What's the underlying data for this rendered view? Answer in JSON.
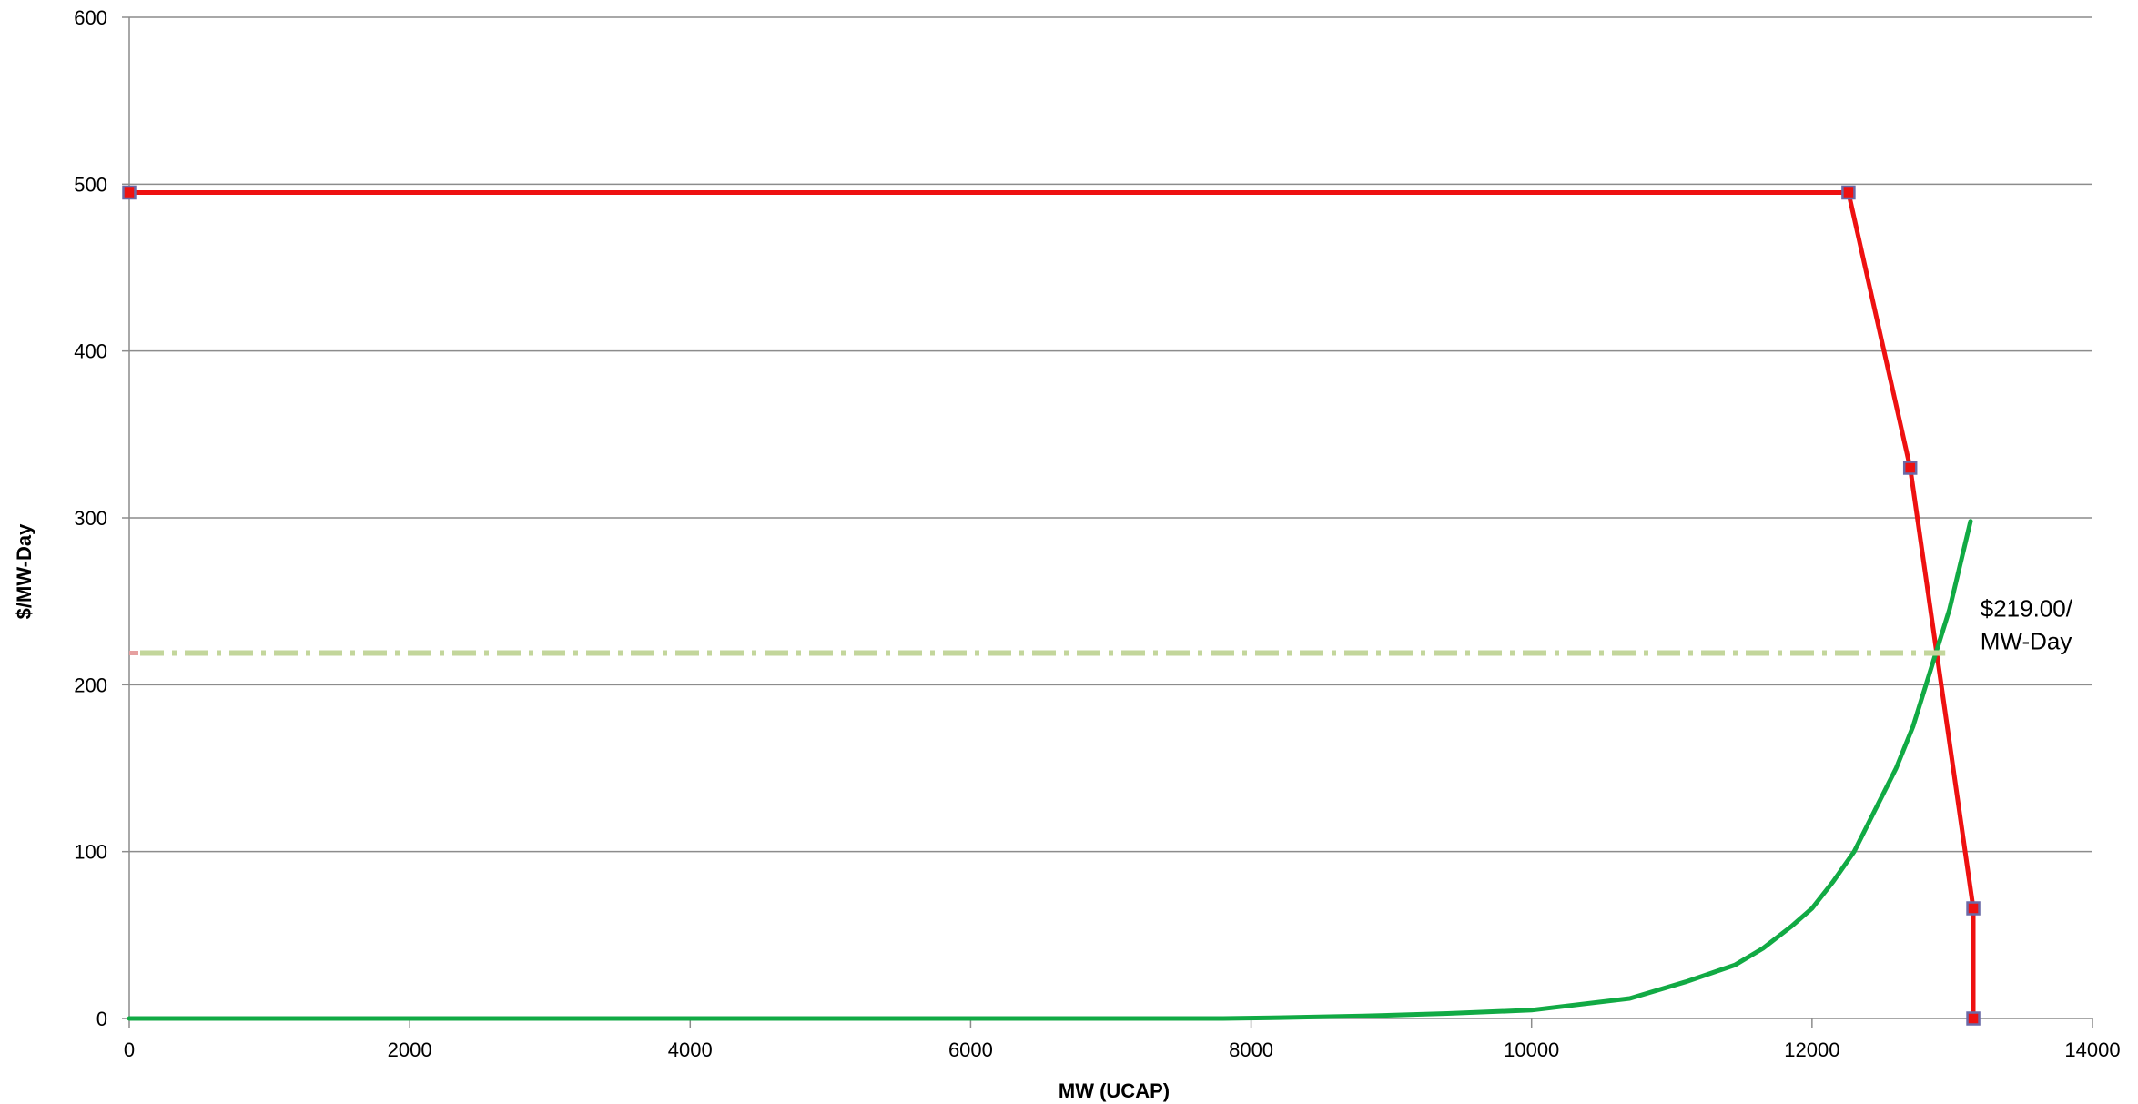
{
  "chart_data": {
    "type": "line",
    "title": "",
    "xlabel": "MW (UCAP)",
    "ylabel": "$/MW-Day",
    "xlim": [
      0,
      14000
    ],
    "ylim": [
      0,
      600
    ],
    "x_ticks": [
      0,
      2000,
      4000,
      6000,
      8000,
      10000,
      12000,
      14000
    ],
    "y_ticks": [
      0,
      100,
      200,
      300,
      400,
      500,
      600
    ],
    "x_tick_labels": [
      "0",
      "2000",
      "4000",
      "6000",
      "8000",
      "10000",
      "12000",
      "14000"
    ],
    "y_tick_labels": [
      "0",
      "100",
      "200",
      "300",
      "400",
      "500",
      "600"
    ],
    "grid": {
      "horizontal": true,
      "vertical": false
    },
    "legend": "none",
    "series": [
      {
        "style": "demand",
        "color": "#ee1111",
        "marker_fill": "#ee1111",
        "marker_stroke": "#6a6aa8",
        "points": [
          [
            0,
            495
          ],
          [
            12260,
            495
          ],
          [
            12700,
            330
          ],
          [
            13150,
            66
          ],
          [
            13150,
            0
          ]
        ]
      },
      {
        "style": "supply",
        "color": "#11aa44",
        "points": [
          [
            0,
            0
          ],
          [
            2000,
            0
          ],
          [
            4000,
            0
          ],
          [
            6000,
            0
          ],
          [
            7800,
            0
          ],
          [
            8200,
            0.5
          ],
          [
            8800,
            1.5
          ],
          [
            9400,
            3
          ],
          [
            10000,
            5
          ],
          [
            10700,
            12
          ],
          [
            11100,
            22
          ],
          [
            11450,
            32
          ],
          [
            11650,
            42
          ],
          [
            11850,
            55
          ],
          [
            12000,
            66
          ],
          [
            12150,
            82
          ],
          [
            12300,
            100
          ],
          [
            12450,
            125
          ],
          [
            12600,
            150
          ],
          [
            12720,
            175
          ],
          [
            12850,
            210
          ],
          [
            12980,
            245
          ],
          [
            13130,
            298
          ]
        ]
      },
      {
        "style": "clearing",
        "color": "#c3d69b",
        "start_color": "#e6a0a0",
        "points": [
          [
            0,
            219
          ],
          [
            12950,
            219
          ]
        ]
      }
    ],
    "annotations": [
      {
        "lines": [
          "$219.00/",
          "MW-Day"
        ],
        "x": 13200,
        "y": 219
      }
    ]
  }
}
